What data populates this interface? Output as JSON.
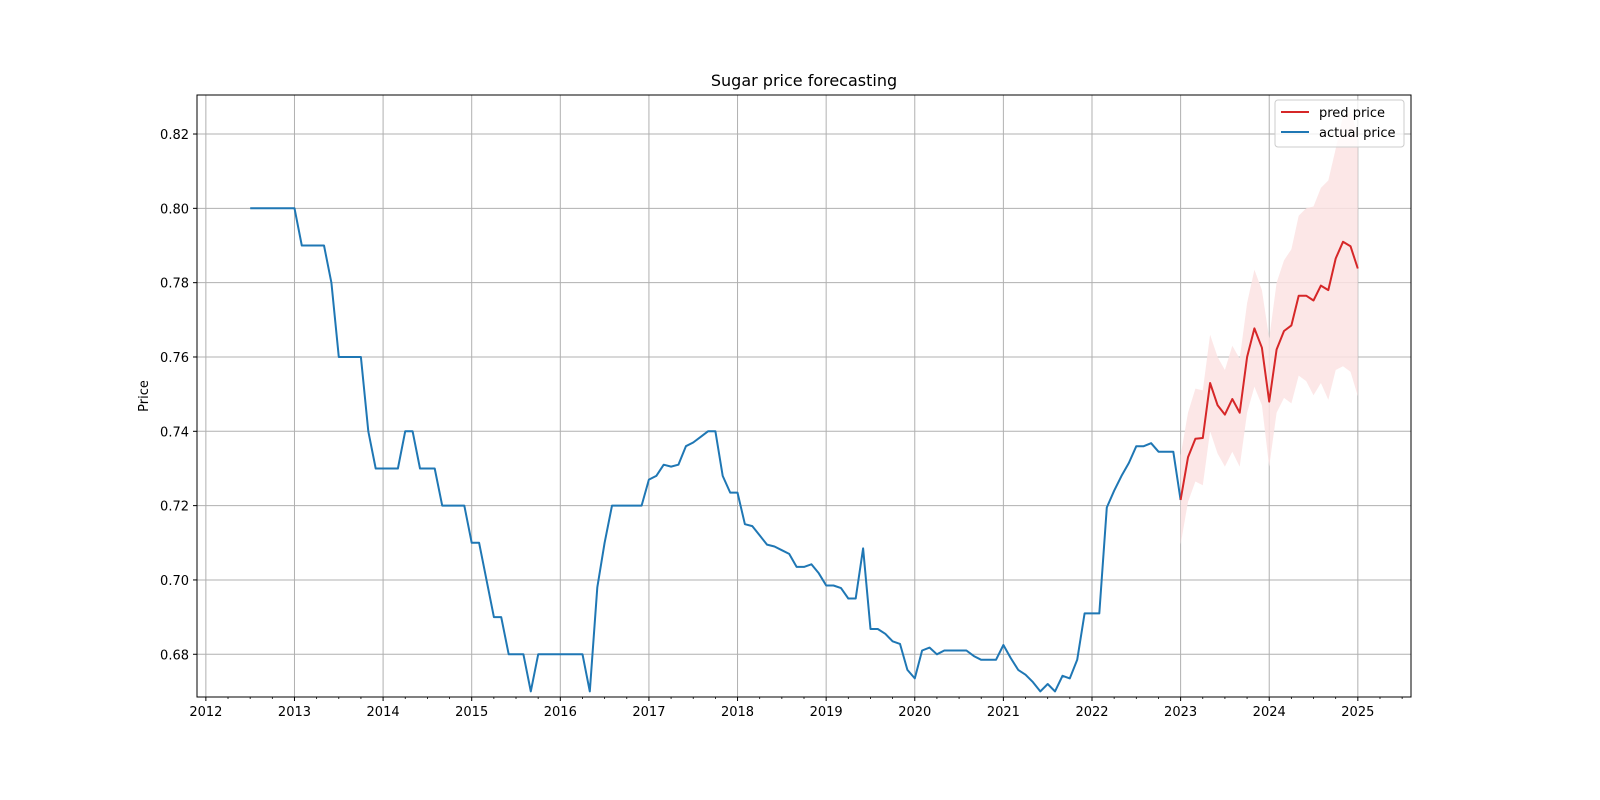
{
  "chart_data": {
    "type": "line",
    "title": "Sugar price forecasting",
    "xlabel": "",
    "ylabel": "Price",
    "grid": true,
    "legend_position": "top-right",
    "xlim": [
      2011.9,
      2025.6
    ],
    "ylim": [
      0.6685,
      0.8305
    ],
    "x_ticks": [
      2012,
      2013,
      2014,
      2015,
      2016,
      2017,
      2018,
      2019,
      2020,
      2021,
      2022,
      2023,
      2024,
      2025
    ],
    "y_ticks": [
      0.68,
      0.7,
      0.72,
      0.74,
      0.76,
      0.78,
      0.8,
      0.82
    ],
    "colors": {
      "pred": "#d62728",
      "actual": "#1f77b4",
      "band": "#fbe3e3"
    },
    "series": [
      {
        "name": "pred price",
        "color": "#d62728",
        "x": [
          2023.0,
          2023.083,
          2023.167,
          2023.25,
          2023.333,
          2023.417,
          2023.5,
          2023.583,
          2023.667,
          2023.75,
          2023.833,
          2023.917,
          2024.0,
          2024.083,
          2024.167,
          2024.25,
          2024.333,
          2024.417,
          2024.5,
          2024.583,
          2024.667,
          2024.75,
          2024.833,
          2024.917,
          2025.0
        ],
        "y": [
          0.7215,
          0.733,
          0.738,
          0.7382,
          0.753,
          0.747,
          0.7445,
          0.7487,
          0.745,
          0.76,
          0.7677,
          0.7625,
          0.748,
          0.762,
          0.767,
          0.7685,
          0.7765,
          0.7765,
          0.7752,
          0.7792,
          0.778,
          0.7865,
          0.791,
          0.7898,
          0.7838
        ]
      },
      {
        "name": "actual price",
        "color": "#1f77b4",
        "x": [
          2012.5,
          2012.583,
          2012.667,
          2012.75,
          2012.833,
          2012.917,
          2013.0,
          2013.083,
          2013.167,
          2013.25,
          2013.333,
          2013.417,
          2013.5,
          2013.583,
          2013.667,
          2013.75,
          2013.833,
          2013.917,
          2014.0,
          2014.083,
          2014.167,
          2014.25,
          2014.333,
          2014.417,
          2014.5,
          2014.583,
          2014.667,
          2014.75,
          2014.833,
          2014.917,
          2015.0,
          2015.083,
          2015.167,
          2015.25,
          2015.333,
          2015.417,
          2015.5,
          2015.583,
          2015.667,
          2015.75,
          2015.833,
          2015.917,
          2016.0,
          2016.083,
          2016.167,
          2016.25,
          2016.333,
          2016.417,
          2016.5,
          2016.583,
          2016.667,
          2016.75,
          2016.833,
          2016.917,
          2017.0,
          2017.083,
          2017.167,
          2017.25,
          2017.333,
          2017.417,
          2017.5,
          2017.583,
          2017.667,
          2017.75,
          2017.833,
          2017.917,
          2018.0,
          2018.083,
          2018.167,
          2018.25,
          2018.333,
          2018.417,
          2018.5,
          2018.583,
          2018.667,
          2018.75,
          2018.833,
          2018.917,
          2019.0,
          2019.083,
          2019.167,
          2019.25,
          2019.333,
          2019.417,
          2019.5,
          2019.583,
          2019.667,
          2019.75,
          2019.833,
          2019.917,
          2020.0,
          2020.083,
          2020.167,
          2020.25,
          2020.333,
          2020.417,
          2020.5,
          2020.583,
          2020.667,
          2020.75,
          2020.833,
          2020.917,
          2021.0,
          2021.083,
          2021.167,
          2021.25,
          2021.333,
          2021.417,
          2021.5,
          2021.583,
          2021.667,
          2021.75,
          2021.833,
          2021.917,
          2022.0,
          2022.083,
          2022.167,
          2022.25,
          2022.333,
          2022.417,
          2022.5,
          2022.583,
          2022.667,
          2022.75,
          2022.833,
          2022.917,
          2023.0
        ],
        "y": [
          0.8,
          0.8,
          0.8,
          0.8,
          0.8,
          0.8,
          0.8,
          0.79,
          0.79,
          0.79,
          0.79,
          0.78,
          0.76,
          0.76,
          0.76,
          0.76,
          0.74,
          0.73,
          0.73,
          0.73,
          0.73,
          0.74,
          0.74,
          0.73,
          0.73,
          0.73,
          0.72,
          0.72,
          0.72,
          0.72,
          0.71,
          0.71,
          0.7,
          0.69,
          0.69,
          0.68,
          0.68,
          0.68,
          0.67,
          0.68,
          0.68,
          0.68,
          0.68,
          0.68,
          0.68,
          0.68,
          0.67,
          0.698,
          0.71,
          0.72,
          0.72,
          0.72,
          0.72,
          0.72,
          0.727,
          0.728,
          0.731,
          0.7305,
          0.731,
          0.736,
          0.737,
          0.7385,
          0.74,
          0.74,
          0.728,
          0.7235,
          0.7235,
          0.715,
          0.7145,
          0.712,
          0.7095,
          0.709,
          0.708,
          0.707,
          0.7035,
          0.7035,
          0.7042,
          0.7018,
          0.6985,
          0.6985,
          0.6978,
          0.695,
          0.695,
          0.7085,
          0.6868,
          0.6868,
          0.6855,
          0.6835,
          0.6828,
          0.6758,
          0.6735,
          0.681,
          0.6818,
          0.68,
          0.681,
          0.681,
          0.681,
          0.681,
          0.6795,
          0.6785,
          0.6785,
          0.6785,
          0.6825,
          0.679,
          0.6758,
          0.6745,
          0.6725,
          0.67,
          0.672,
          0.67,
          0.6742,
          0.6735,
          0.6785,
          0.691,
          0.691,
          0.691,
          0.7195,
          0.724,
          0.728,
          0.7315,
          0.736,
          0.736,
          0.7368,
          0.7345,
          0.7345,
          0.7345,
          0.7215
        ]
      }
    ],
    "confidence_band": {
      "x": [
        2023.0,
        2023.083,
        2023.167,
        2023.25,
        2023.333,
        2023.417,
        2023.5,
        2023.583,
        2023.667,
        2023.75,
        2023.833,
        2023.917,
        2024.0,
        2024.083,
        2024.167,
        2024.25,
        2024.333,
        2024.417,
        2024.5,
        2024.583,
        2024.667,
        2024.75,
        2024.833,
        2024.917,
        2025.0
      ],
      "lower": [
        0.7095,
        0.721,
        0.7265,
        0.7255,
        0.74,
        0.734,
        0.7305,
        0.7345,
        0.7305,
        0.745,
        0.752,
        0.747,
        0.7305,
        0.745,
        0.749,
        0.7475,
        0.755,
        0.7535,
        0.7497,
        0.753,
        0.7485,
        0.7565,
        0.7575,
        0.756,
        0.7495
      ],
      "upper": [
        0.7335,
        0.745,
        0.7515,
        0.751,
        0.766,
        0.76,
        0.7565,
        0.763,
        0.7595,
        0.7745,
        0.7835,
        0.778,
        0.765,
        0.78,
        0.786,
        0.789,
        0.798,
        0.8,
        0.8005,
        0.8055,
        0.8075,
        0.816,
        0.825,
        0.826,
        0.82
      ]
    }
  }
}
